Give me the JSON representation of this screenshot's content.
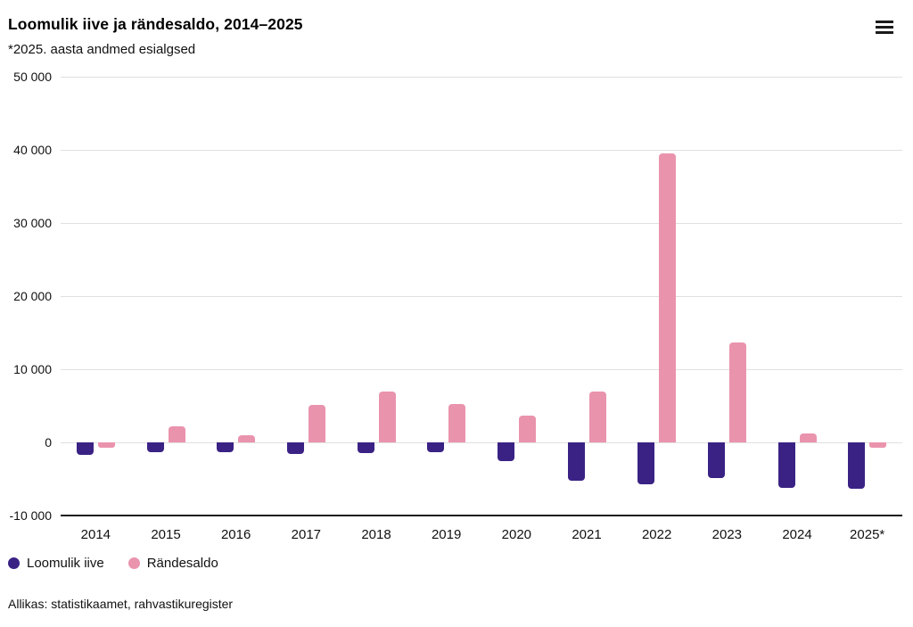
{
  "header": {
    "title": "Loomulik iive ja rändesaldo, 2014–2025",
    "subtitle": "*2025. aasta andmed esialgsed"
  },
  "menu": {
    "icon": "hamburger-menu-icon"
  },
  "source": "Allikas: statistikaamet, rahvastikuregister",
  "colors": {
    "loomulik_iive": "#3a2285",
    "randesaldo": "#ea93ad",
    "gridline": "#e0e0e0",
    "axis_line": "#1a1a1a",
    "text": "#111111"
  },
  "chart_data": {
    "type": "bar",
    "title": "Loomulik iive ja rändesaldo, 2014–2025",
    "subtitle": "*2025. aasta andmed esialgsed",
    "categories": [
      "2014",
      "2015",
      "2016",
      "2017",
      "2018",
      "2019",
      "2020",
      "2021",
      "2022",
      "2023",
      "2024",
      "2025*"
    ],
    "series": [
      {
        "name": "Loomulik iive",
        "color": "#3a2285",
        "values": [
          -1700,
          -1300,
          -1300,
          -1600,
          -1500,
          -1300,
          -2500,
          -5300,
          -5700,
          -4900,
          -6200,
          -6400
        ]
      },
      {
        "name": "Rändesaldo",
        "color": "#ea93ad",
        "values": [
          -700,
          2200,
          1000,
          5100,
          7000,
          5300,
          3600,
          6900,
          39500,
          13700,
          1200,
          -700
        ]
      }
    ],
    "ylim": [
      -10000,
      50000
    ],
    "yticks": [
      50000,
      40000,
      30000,
      20000,
      10000,
      0,
      -10000
    ],
    "ytick_labels": [
      "50 000",
      "40 000",
      "30 000",
      "20 000",
      "10 000",
      "0",
      "-10 000"
    ],
    "grid": true,
    "legend_position": "bottom-left",
    "xlabel": "",
    "ylabel": ""
  }
}
